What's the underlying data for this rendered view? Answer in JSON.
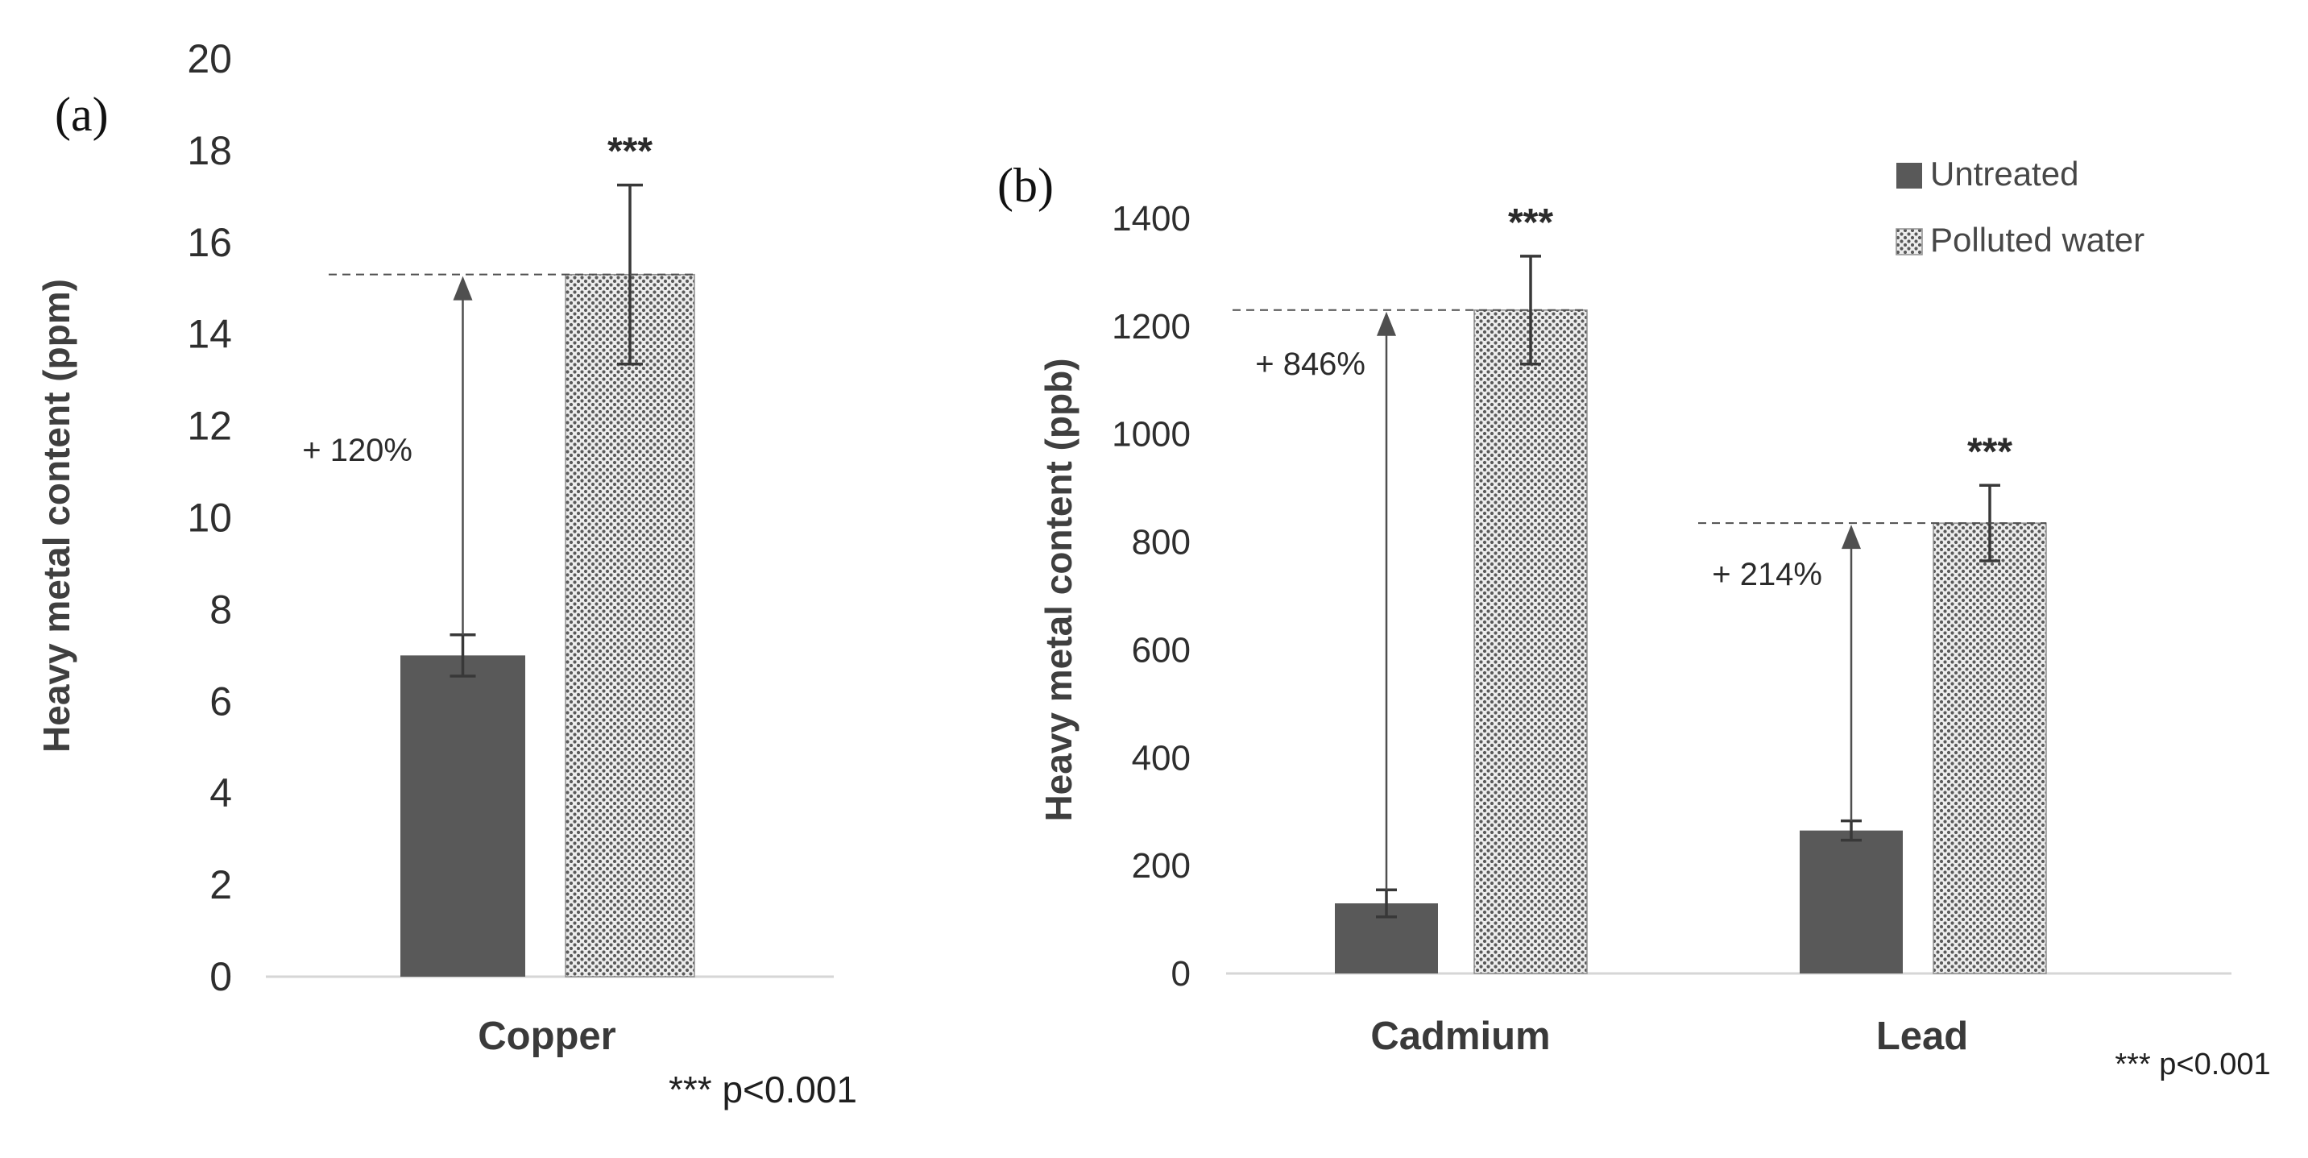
{
  "figure_type": "scientific-bar-chart",
  "colors": {
    "untreated_fill": "#595959",
    "polluted_dot": "#5a5a5a",
    "polluted_bg": "#ededed",
    "axis_line": "#d6d6d6"
  },
  "chart_data": [
    {
      "type": "bar",
      "panel_label": "(a)",
      "ylabel": "Heavy metal content (ppm)",
      "ylim": [
        0,
        20
      ],
      "ytick_step": 2,
      "yticks": [
        0,
        2,
        4,
        6,
        8,
        10,
        12,
        14,
        16,
        18,
        20
      ],
      "grid": false,
      "legend_position": "none",
      "categories": [
        "Copper"
      ],
      "series": [
        {
          "name": "Untreated",
          "style": "solid-dark-gray",
          "values": [
            7.0
          ],
          "errors": [
            0.45
          ]
        },
        {
          "name": "Polluted water",
          "style": "dotted-pattern",
          "values": [
            15.3
          ],
          "errors": [
            1.95
          ]
        }
      ],
      "annotations": [
        {
          "category": "Copper",
          "increase_label": "+ 120%",
          "significance": "***"
        }
      ],
      "footnote": "*** p<0.001"
    },
    {
      "type": "bar",
      "panel_label": "(b)",
      "ylabel": "Heavy metal content (ppb)",
      "ylim": [
        0,
        1400
      ],
      "ytick_step": 200,
      "yticks": [
        0,
        200,
        400,
        600,
        800,
        1000,
        1200,
        1400
      ],
      "grid": false,
      "legend_position": "top-right",
      "legend": {
        "entries": [
          "Untreated",
          "Polluted water"
        ]
      },
      "categories": [
        "Cadmium",
        "Lead"
      ],
      "series": [
        {
          "name": "Untreated",
          "style": "solid-dark-gray",
          "values": [
            130,
            265
          ],
          "errors": [
            25,
            18
          ]
        },
        {
          "name": "Polluted water",
          "style": "dotted-pattern",
          "values": [
            1230,
            835
          ],
          "errors": [
            100,
            70
          ]
        }
      ],
      "annotations": [
        {
          "category": "Cadmium",
          "increase_label": "+ 846%",
          "significance": "***"
        },
        {
          "category": "Lead",
          "increase_label": "+ 214%",
          "significance": "***"
        }
      ],
      "footnote": "*** p<0.001"
    }
  ]
}
